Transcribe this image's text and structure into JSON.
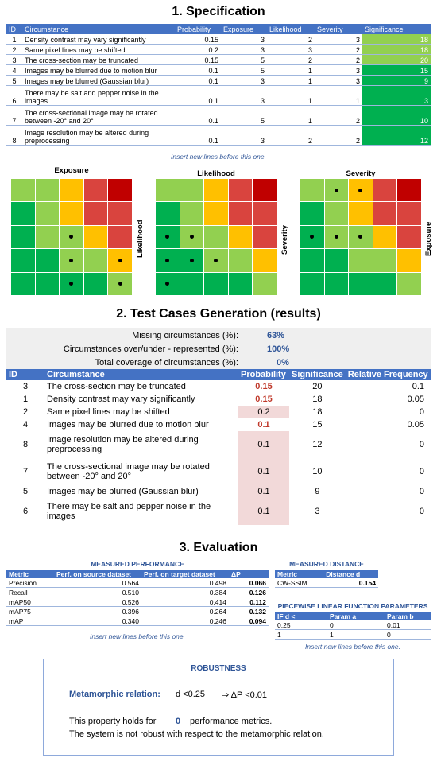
{
  "spec": {
    "title": "1. Specification",
    "headers": [
      "ID",
      "Circumstance",
      "Probability",
      "Exposure",
      "Likelihood",
      "Severity",
      "Significance"
    ],
    "rows": [
      {
        "id": "1",
        "circ": "Density contrast may vary significantly",
        "prob": "0.15",
        "exp": "3",
        "lik": "2",
        "sev": "3",
        "sig": "18",
        "color": "#92d050"
      },
      {
        "id": "2",
        "circ": "Same pixel lines may be shifted",
        "prob": "0.2",
        "exp": "3",
        "lik": "3",
        "sev": "2",
        "sig": "18",
        "color": "#92d050"
      },
      {
        "id": "3",
        "circ": "The cross-section may be truncated",
        "prob": "0.15",
        "exp": "5",
        "lik": "2",
        "sev": "2",
        "sig": "20",
        "color": "#92d050"
      },
      {
        "id": "4",
        "circ": "Images may be blurred due to motion blur",
        "prob": "0.1",
        "exp": "5",
        "lik": "1",
        "sev": "3",
        "sig": "15",
        "color": "#00b050"
      },
      {
        "id": "5",
        "circ": "Images may be blurred (Gaussian blur)",
        "prob": "0.1",
        "exp": "3",
        "lik": "1",
        "sev": "3",
        "sig": "9",
        "color": "#00b050"
      },
      {
        "id": "6",
        "circ": "There may be salt and pepper noise in the images",
        "prob": "0.1",
        "exp": "3",
        "lik": "1",
        "sev": "1",
        "sig": "3",
        "color": "#00b050"
      },
      {
        "id": "7",
        "circ": "The cross-sectional image may be rotated between -20° and 20°",
        "prob": "0.1",
        "exp": "5",
        "lik": "1",
        "sev": "2",
        "sig": "10",
        "color": "#00b050"
      },
      {
        "id": "8",
        "circ": "Image resolution may be altered during preprocessing",
        "prob": "0.1",
        "exp": "3",
        "lik": "2",
        "sev": "2",
        "sig": "12",
        "color": "#00b050"
      }
    ],
    "note": "Insert new lines before this one."
  },
  "heatmaps": {
    "exposure_title": "Exposure",
    "likelihood_title": "Likelihood",
    "severity_title": "Severity",
    "label_likelihood": "Likelihood",
    "label_severity": "Severity",
    "label_exposure": "Exposure",
    "colors": {
      "dg": "#00b050",
      "lg": "#92d050",
      "y": "#ffc000",
      "r": "#d9443e",
      "dr": "#c00000"
    },
    "grid_colors": [
      [
        "lg",
        "lg",
        "y",
        "r",
        "dr"
      ],
      [
        "dg",
        "lg",
        "y",
        "r",
        "r"
      ],
      [
        "dg",
        "lg",
        "lg",
        "y",
        "r"
      ],
      [
        "dg",
        "dg",
        "lg",
        "lg",
        "y"
      ],
      [
        "dg",
        "dg",
        "dg",
        "dg",
        "lg"
      ]
    ],
    "dots_exposure": [
      [
        2,
        2
      ],
      [
        3,
        2
      ],
      [
        3,
        4
      ],
      [
        4,
        2
      ],
      [
        4,
        4
      ]
    ],
    "dots_likelihood": [
      [
        2,
        0
      ],
      [
        2,
        1
      ],
      [
        3,
        0
      ],
      [
        3,
        1
      ],
      [
        3,
        2
      ],
      [
        4,
        0
      ]
    ],
    "dots_severity": [
      [
        0,
        1
      ],
      [
        0,
        2
      ],
      [
        2,
        0
      ],
      [
        2,
        1
      ],
      [
        2,
        2
      ]
    ]
  },
  "gen": {
    "title": "2. Test Cases Generation (results)",
    "missing_label": "Missing circumstances (%):",
    "missing_value": "63%",
    "over_label": "Circumstances over/under - represented (%):",
    "over_value": "100%",
    "total_label": "Total coverage of circumstances (%):",
    "total_value": "0%",
    "headers": [
      "ID",
      "Circumstance",
      "Probability",
      "Significance",
      "Relative Frequency"
    ],
    "rows": [
      {
        "id": "3",
        "circ": "The cross-section may be truncated",
        "prob": "0.15",
        "sig": "20",
        "freq": "0.1",
        "red": true
      },
      {
        "id": "1",
        "circ": "Density contrast may vary significantly",
        "prob": "0.15",
        "sig": "18",
        "freq": "0.05",
        "red": true
      },
      {
        "id": "2",
        "circ": "Same pixel lines may be shifted",
        "prob": "0.2",
        "sig": "18",
        "freq": "0",
        "red": false
      },
      {
        "id": "4",
        "circ": "Images may be blurred due to motion blur",
        "prob": "0.1",
        "sig": "15",
        "freq": "0.05",
        "red": true
      },
      {
        "id": "8",
        "circ": "Image resolution may be altered during preprocessing",
        "prob": "0.1",
        "sig": "12",
        "freq": "0",
        "red": false
      },
      {
        "id": "7",
        "circ": "The cross-sectional image may be rotated between -20° and 20°",
        "prob": "0.1",
        "sig": "10",
        "freq": "0",
        "red": false
      },
      {
        "id": "5",
        "circ": "Images may be blurred (Gaussian blur)",
        "prob": "0.1",
        "sig": "9",
        "freq": "0",
        "red": false
      },
      {
        "id": "6",
        "circ": "There may be salt and pepper noise in the images",
        "prob": "0.1",
        "sig": "3",
        "freq": "0",
        "red": false
      }
    ]
  },
  "eval": {
    "title": "3. Evaluation",
    "perf_title": "MEASURED PERFORMANCE",
    "perf_headers": [
      "Metric",
      "Perf. on source dataset",
      "Perf. on target dataset",
      "ΔP"
    ],
    "perf_rows": [
      [
        "Precision",
        "0.564",
        "0.498",
        "0.066"
      ],
      [
        "Recall",
        "0.510",
        "0.384",
        "0.126"
      ],
      [
        "mAP50",
        "0.526",
        "0.414",
        "0.112"
      ],
      [
        "mAP75",
        "0.396",
        "0.264",
        "0.132"
      ],
      [
        "mAP",
        "0.340",
        "0.246",
        "0.094"
      ]
    ],
    "perf_note": "Insert new lines before this one.",
    "dist_title": "MEASURED DISTANCE",
    "dist_headers": [
      "Metric",
      "Distance d"
    ],
    "dist_row": [
      "CW-SSIM",
      "0.154"
    ],
    "pw_title": "PIECEWISE LINEAR FUNCTION PARAMETERS",
    "pw_headers": [
      "IF d <",
      "Param a",
      "Param b"
    ],
    "pw_rows": [
      [
        "0.25",
        "0",
        "0.01"
      ],
      [
        "1",
        "1",
        "0"
      ]
    ],
    "pw_note": "Insert new lines before this one."
  },
  "robustness": {
    "title": "ROBUSTNESS",
    "relation_label": "Metamorphic relation:",
    "relation_cond": "d <0.25",
    "relation_result": "⇒  ΔP <0.01",
    "holds_prefix": "This property holds for",
    "holds_count": "0",
    "holds_suffix": "performance metrics.",
    "conclusion": "The system is not robust with respect to the metamorphic relation."
  }
}
